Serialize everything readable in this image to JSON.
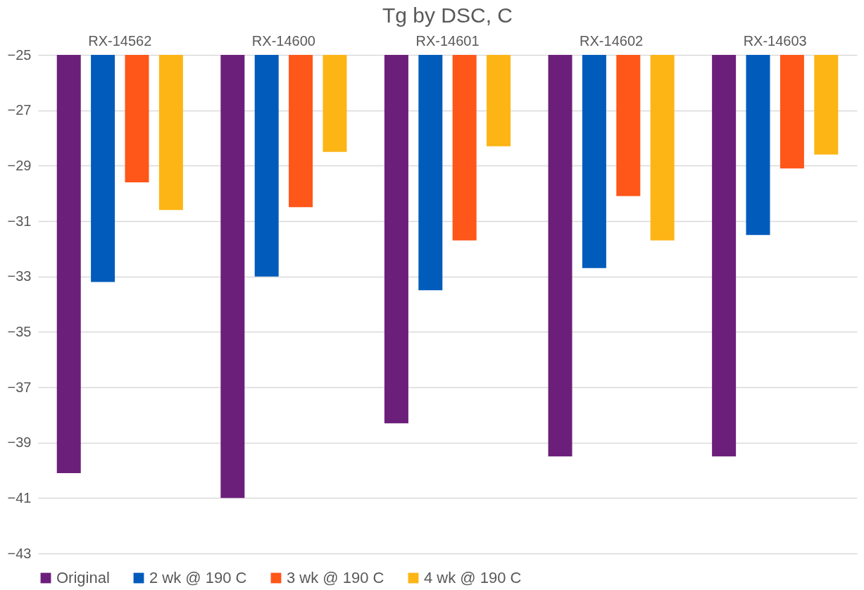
{
  "chart_data": {
    "type": "bar",
    "title": "Tg by DSC, C",
    "categories": [
      "RX-14562",
      "RX-14600",
      "RX-14601",
      "RX-14602",
      "RX-14603"
    ],
    "series": [
      {
        "name": "Original",
        "color": "#6b1f7a",
        "values": [
          -40.1,
          -41.0,
          -38.3,
          -39.5,
          -39.5
        ]
      },
      {
        "name": "2 wk @ 190 C",
        "color": "#005bbb",
        "values": [
          -33.2,
          -33.0,
          -33.5,
          -32.7,
          -31.5
        ]
      },
      {
        "name": "3 wk @ 190 C",
        "color": "#ff5619",
        "values": [
          -29.6,
          -30.5,
          -31.7,
          -30.1,
          -29.1
        ]
      },
      {
        "name": "4 wk @ 190 C",
        "color": "#fdb515",
        "values": [
          -30.6,
          -28.5,
          -28.3,
          -31.7,
          -28.6
        ]
      }
    ],
    "ylim": [
      -43,
      -25
    ],
    "yticks": [
      -43,
      -41,
      -39,
      -37,
      -35,
      -33,
      -31,
      -29,
      -27,
      -25
    ],
    "grid": "y",
    "legend": "bottom"
  }
}
